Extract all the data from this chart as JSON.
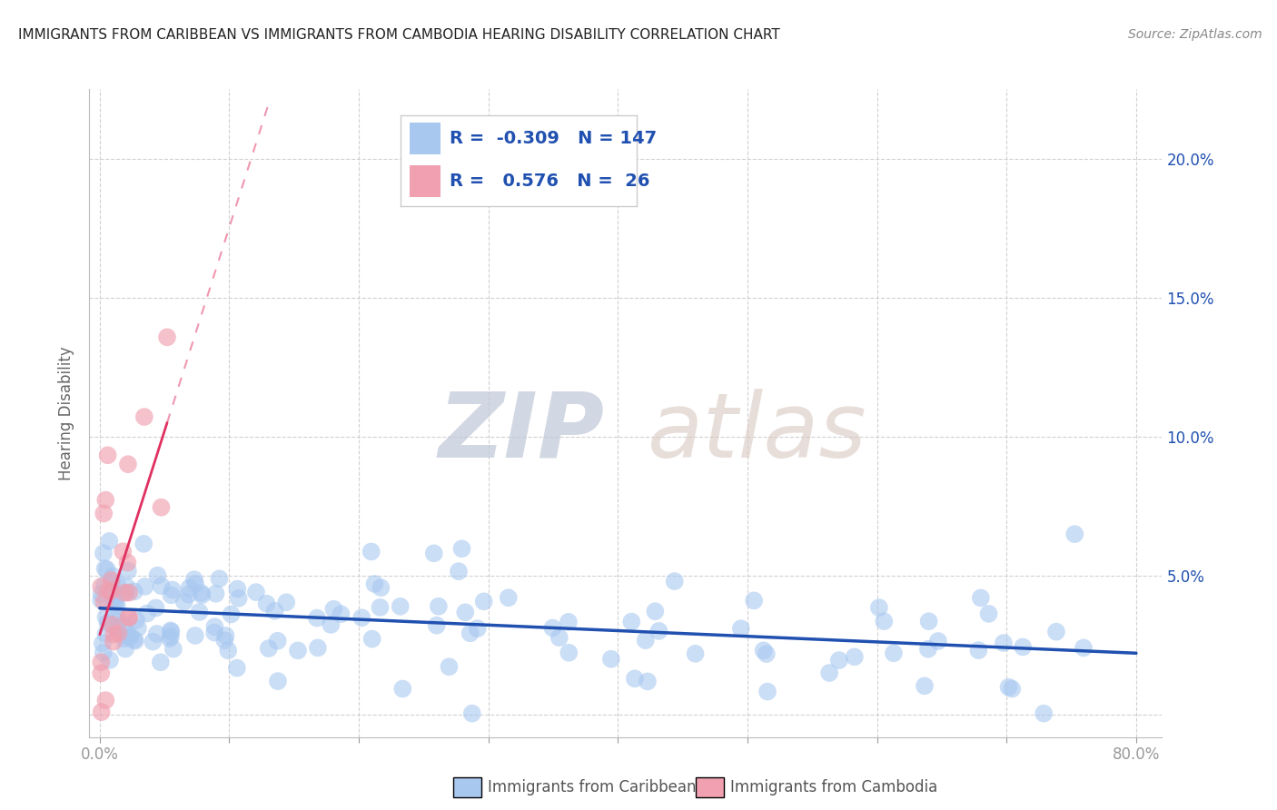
{
  "title": "IMMIGRANTS FROM CARIBBEAN VS IMMIGRANTS FROM CAMBODIA HEARING DISABILITY CORRELATION CHART",
  "source": "Source: ZipAtlas.com",
  "xlabel_caribbean": "Immigrants from Caribbean",
  "xlabel_cambodia": "Immigrants from Cambodia",
  "ylabel": "Hearing Disability",
  "watermark_zip": "ZIP",
  "watermark_atlas": "atlas",
  "xlim": [
    -0.008,
    0.82
  ],
  "ylim": [
    -0.008,
    0.225
  ],
  "xtick_pos": [
    0.0,
    0.1,
    0.2,
    0.3,
    0.4,
    0.5,
    0.6,
    0.7,
    0.8
  ],
  "ytick_pos": [
    0.0,
    0.05,
    0.1,
    0.15,
    0.2
  ],
  "blue_color": "#A8C8F0",
  "pink_color": "#F0A0B0",
  "blue_line_color": "#2050B0",
  "pink_line_color": "#E03060",
  "R_blue": -0.309,
  "N_blue": 147,
  "R_pink": 0.576,
  "N_pink": 26,
  "legend_text_color": "#2050B0",
  "title_color": "#222222",
  "grid_color": "#CCCCCC",
  "right_yaxis_color": "#2050B0",
  "source_color": "#888888",
  "axis_label_color": "#666666",
  "bottom_label_color": "#555555"
}
